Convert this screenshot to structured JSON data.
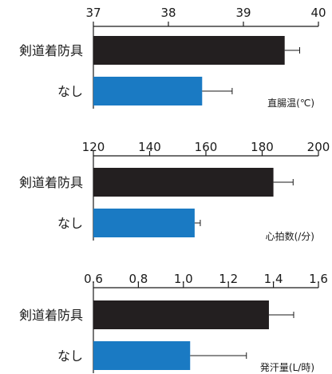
{
  "chart_data": [
    {
      "type": "bar",
      "orientation": "horizontal",
      "unit_label": "直腸温(℃)",
      "xlim": [
        37,
        40
      ],
      "xticks": [
        "37",
        "38",
        "39",
        "40"
      ],
      "categories": [
        "剣道着防具",
        "なし"
      ],
      "values": [
        39.55,
        38.45
      ],
      "errors": [
        0.2,
        0.4
      ],
      "colors": [
        "#231f20",
        "#1a7ac3"
      ]
    },
    {
      "type": "bar",
      "orientation": "horizontal",
      "unit_label": "心拍数(/分)",
      "xlim": [
        120,
        200
      ],
      "xticks": [
        "120",
        "140",
        "160",
        "180",
        "200"
      ],
      "categories": [
        "剣道着防具",
        "なし"
      ],
      "values": [
        184,
        156
      ],
      "errors": [
        7,
        2
      ],
      "colors": [
        "#231f20",
        "#1a7ac3"
      ]
    },
    {
      "type": "bar",
      "orientation": "horizontal",
      "unit_label": "発汗量(L/時)",
      "xlim": [
        0.6,
        1.6
      ],
      "xticks": [
        "0.6",
        "0.8",
        "1.0",
        "1.2",
        "1.4",
        "1.6"
      ],
      "categories": [
        "剣道着防具",
        "なし"
      ],
      "values": [
        1.38,
        1.03
      ],
      "errors": [
        0.11,
        0.25
      ],
      "colors": [
        "#231f20",
        "#1a7ac3"
      ]
    }
  ]
}
